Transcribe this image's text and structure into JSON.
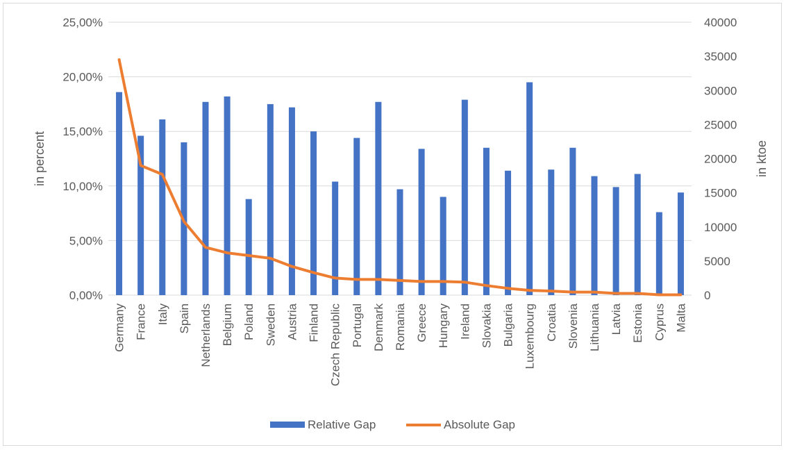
{
  "chart_data": {
    "type": "bar+line",
    "categories": [
      "Germany",
      "France",
      "Italy",
      "Spain",
      "Netherlands",
      "Belgium",
      "Poland",
      "Sweden",
      "Austria",
      "Finland",
      "Czech Republic",
      "Portugal",
      "Denmark",
      "Romania",
      "Greece",
      "Hungary",
      "Ireland",
      "Slovakia",
      "Bulgaria",
      "Luxembourg",
      "Croatia",
      "Slovenia",
      "Lithuania",
      "Latvia",
      "Estonia",
      "Cyprus",
      "Malta"
    ],
    "series": [
      {
        "name": "Relative Gap",
        "type": "bar",
        "axis": "left",
        "color": "#4472C4",
        "values": [
          18.6,
          14.6,
          16.1,
          14.0,
          17.7,
          18.2,
          8.8,
          17.5,
          17.2,
          15.0,
          10.4,
          14.4,
          17.7,
          9.7,
          13.4,
          9.0,
          17.9,
          13.5,
          11.4,
          19.5,
          11.5,
          13.5,
          10.9,
          9.9,
          11.1,
          7.6,
          9.4
        ]
      },
      {
        "name": "Absolute Gap",
        "type": "line",
        "axis": "right",
        "color": "#ED7D31",
        "values": [
          34500,
          19000,
          17700,
          10800,
          7000,
          6200,
          5800,
          5400,
          4200,
          3300,
          2500,
          2300,
          2300,
          2150,
          2000,
          2000,
          1900,
          1400,
          1000,
          700,
          600,
          450,
          450,
          250,
          250,
          50,
          50
        ]
      }
    ],
    "y_left": {
      "label": "in percent",
      "ticks": [
        "0,00%",
        "5,00%",
        "10,00%",
        "15,00%",
        "20,00%",
        "25,00%"
      ],
      "range": [
        0,
        25
      ]
    },
    "y_right": {
      "label": "in ktoe",
      "ticks": [
        "0",
        "5000",
        "10000",
        "15000",
        "20000",
        "25000",
        "30000",
        "35000",
        "40000"
      ],
      "range": [
        0,
        40000
      ]
    },
    "grid": true,
    "legend_position": "bottom"
  }
}
